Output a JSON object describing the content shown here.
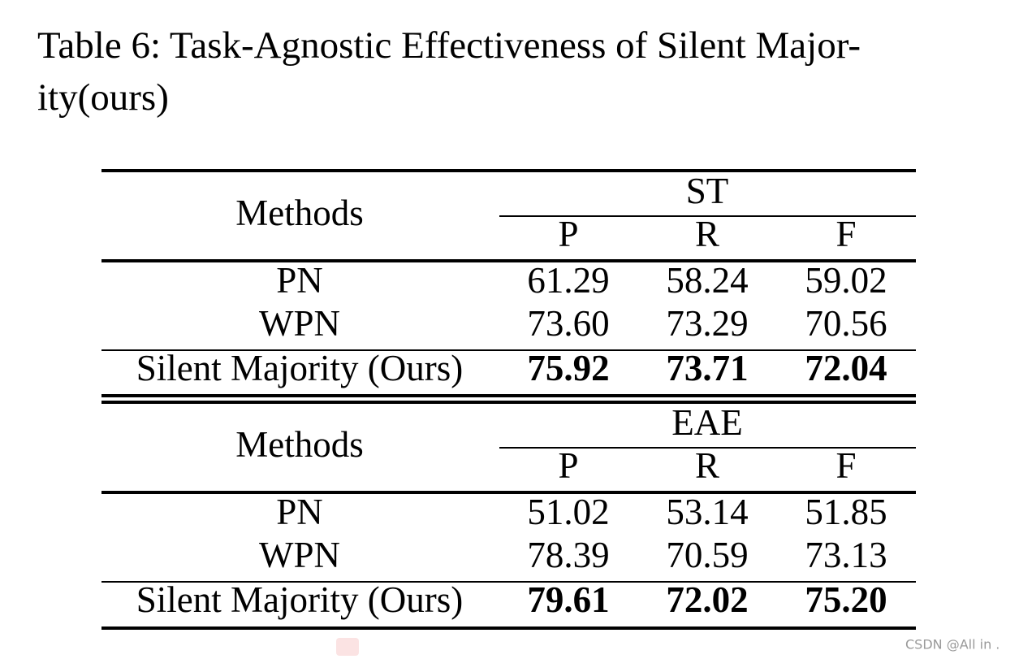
{
  "caption": {
    "lines": [
      "Table 6: Task-Agnostic Effectiveness of Silent Major-",
      "ity(ours)"
    ]
  },
  "table": {
    "blocks": [
      {
        "method_header": "Methods",
        "group": "ST",
        "columns": [
          "P",
          "R",
          "F"
        ],
        "rows": [
          [
            "PN",
            "61.29",
            "58.24",
            "59.02"
          ],
          [
            "WPN",
            "73.60",
            "73.29",
            "70.56"
          ],
          [
            "Silent Majority (Ours)",
            "75.92",
            "73.71",
            "72.04"
          ]
        ]
      },
      {
        "method_header": "Methods",
        "group": "EAE",
        "columns": [
          "P",
          "R",
          "F"
        ],
        "rows": [
          [
            "PN",
            "51.02",
            "53.14",
            "51.85"
          ],
          [
            "WPN",
            "78.39",
            "70.59",
            "73.13"
          ],
          [
            "Silent Majority (Ours)",
            "79.61",
            "72.02",
            "75.20"
          ]
        ]
      }
    ]
  },
  "watermark": "CSDN @All in ."
}
